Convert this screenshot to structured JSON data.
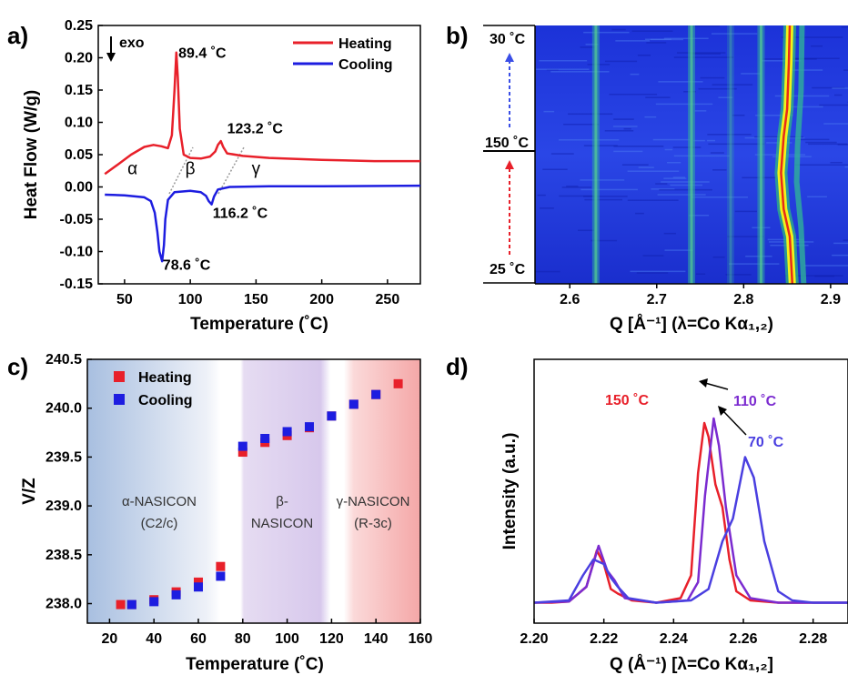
{
  "colors": {
    "heating": "#e8202a",
    "cooling": "#1d1de0",
    "c110": "#7b2bd0",
    "c70": "#4a3fe0"
  },
  "panel_labels": {
    "a": "a)",
    "b": "b)",
    "c": "c)",
    "d": "d)"
  },
  "chart_data": [
    {
      "id": "a",
      "type": "line",
      "xlabel": "Temperature (˚C)",
      "ylabel": "Heat Flow (W/g)",
      "xlim": [
        30,
        275
      ],
      "ylim": [
        -0.15,
        0.25
      ],
      "xticks": [
        "50",
        "100",
        "150",
        "200",
        "250"
      ],
      "yticks": [
        "-0.15",
        "-0.10",
        "-0.05",
        "0.00",
        "0.05",
        "0.10",
        "0.15",
        "0.20",
        "0.25"
      ],
      "exo_label": "exo",
      "legend_position": "top-right",
      "series": [
        {
          "name": "Heating",
          "points": [
            [
              35,
              0.02
            ],
            [
              45,
              0.035
            ],
            [
              55,
              0.05
            ],
            [
              65,
              0.062
            ],
            [
              72,
              0.065
            ],
            [
              78,
              0.063
            ],
            [
              83,
              0.06
            ],
            [
              86,
              0.08
            ],
            [
              88,
              0.15
            ],
            [
              89.4,
              0.208
            ],
            [
              90.5,
              0.17
            ],
            [
              92,
              0.09
            ],
            [
              95,
              0.05
            ],
            [
              100,
              0.045
            ],
            [
              108,
              0.044
            ],
            [
              115,
              0.047
            ],
            [
              119,
              0.055
            ],
            [
              121,
              0.065
            ],
            [
              123.2,
              0.071
            ],
            [
              125,
              0.062
            ],
            [
              128,
              0.052
            ],
            [
              140,
              0.048
            ],
            [
              160,
              0.045
            ],
            [
              200,
              0.042
            ],
            [
              240,
              0.04
            ],
            [
              275,
              0.04
            ]
          ]
        },
        {
          "name": "Cooling",
          "points": [
            [
              35,
              -0.012
            ],
            [
              50,
              -0.013
            ],
            [
              65,
              -0.016
            ],
            [
              70,
              -0.022
            ],
            [
              73,
              -0.04
            ],
            [
              75,
              -0.07
            ],
            [
              76.5,
              -0.1
            ],
            [
              78.6,
              -0.115
            ],
            [
              80,
              -0.09
            ],
            [
              81,
              -0.05
            ],
            [
              83,
              -0.02
            ],
            [
              88,
              -0.008
            ],
            [
              100,
              -0.006
            ],
            [
              108,
              -0.008
            ],
            [
              112,
              -0.014
            ],
            [
              114,
              -0.022
            ],
            [
              116.2,
              -0.027
            ],
            [
              118,
              -0.015
            ],
            [
              121,
              -0.004
            ],
            [
              130,
              0.0
            ],
            [
              160,
              0.001
            ],
            [
              200,
              0.001
            ],
            [
              275,
              0.002
            ]
          ]
        }
      ],
      "annotations": [
        {
          "text": "89.4 ˚C",
          "x": 91,
          "y": 0.2
        },
        {
          "text": "123.2 ˚C",
          "x": 128,
          "y": 0.083
        },
        {
          "text": "116.2 ˚C",
          "x": 117,
          "y": -0.048
        },
        {
          "text": "78.6 ˚C",
          "x": 79,
          "y": -0.128
        }
      ],
      "phase_labels": [
        {
          "text": "α",
          "x": 56,
          "y": 0.02
        },
        {
          "text": "β",
          "x": 100,
          "y": 0.02
        },
        {
          "text": "γ",
          "x": 150,
          "y": 0.02
        }
      ]
    },
    {
      "id": "b",
      "type": "heatmap",
      "xlabel": "Q [Å⁻¹] (λ=Co Kα₁,₂)",
      "xlim": [
        2.56,
        2.92
      ],
      "xticks": [
        "2.6",
        "2.7",
        "2.8",
        "2.9"
      ],
      "temp_labels": [
        "30 ˚C",
        "150 ˚C",
        "25 ˚C"
      ]
    },
    {
      "id": "c",
      "type": "scatter",
      "xlabel": "Temperature (˚C)",
      "ylabel": "V/Z",
      "xlim": [
        10,
        160
      ],
      "ylim": [
        237.8,
        240.5
      ],
      "xticks": [
        "20",
        "40",
        "60",
        "80",
        "100",
        "120",
        "140",
        "160"
      ],
      "yticks": [
        "238.0",
        "238.5",
        "239.0",
        "239.5",
        "240.0",
        "240.5"
      ],
      "legend_position": "top-left",
      "series": [
        {
          "name": "Heating",
          "x": [
            25,
            30,
            40,
            50,
            60,
            70,
            80,
            90,
            100,
            110,
            120,
            130,
            140,
            150
          ],
          "values": [
            237.99,
            237.99,
            238.04,
            238.12,
            238.22,
            238.38,
            239.55,
            239.65,
            239.72,
            239.8,
            239.92,
            240.04,
            240.14,
            240.25
          ]
        },
        {
          "name": "Cooling",
          "x": [
            30,
            40,
            50,
            60,
            70,
            80,
            90,
            100,
            110,
            120,
            130,
            140
          ],
          "values": [
            237.99,
            238.02,
            238.09,
            238.17,
            238.28,
            239.61,
            239.69,
            239.76,
            239.81,
            239.92,
            240.04,
            240.14
          ]
        }
      ],
      "regions": [
        {
          "line1": "α-NASICON",
          "line2": "(C2/c)"
        },
        {
          "line1": "β-",
          "line2": "NASICON"
        },
        {
          "line1": "γ-NASICON",
          "line2": "(R-3c)"
        }
      ]
    },
    {
      "id": "d",
      "type": "line",
      "xlabel": "Q (Å⁻¹) [λ=Co Kα₁,₂]",
      "ylabel": "Intensity (a.u.)",
      "xlim": [
        2.2,
        2.29
      ],
      "xticks": [
        "2.20",
        "2.22",
        "2.24",
        "2.26",
        "2.28"
      ],
      "series": [
        {
          "name": "150 ˚C",
          "points": [
            [
              2.2,
              0.03
            ],
            [
              2.205,
              0.03
            ],
            [
              2.21,
              0.035
            ],
            [
              2.215,
              0.1
            ],
            [
              2.218,
              0.26
            ],
            [
              2.22,
              0.2
            ],
            [
              2.222,
              0.09
            ],
            [
              2.224,
              0.07
            ],
            [
              2.228,
              0.04
            ],
            [
              2.235,
              0.03
            ],
            [
              2.242,
              0.05
            ],
            [
              2.245,
              0.15
            ],
            [
              2.247,
              0.6
            ],
            [
              2.2488,
              0.82
            ],
            [
              2.25,
              0.76
            ],
            [
              2.252,
              0.55
            ],
            [
              2.254,
              0.45
            ],
            [
              2.256,
              0.22
            ],
            [
              2.258,
              0.08
            ],
            [
              2.262,
              0.04
            ],
            [
              2.27,
              0.03
            ],
            [
              2.29,
              0.03
            ]
          ]
        },
        {
          "name": "110 ˚C",
          "points": [
            [
              2.2,
              0.03
            ],
            [
              2.21,
              0.035
            ],
            [
              2.215,
              0.1
            ],
            [
              2.2185,
              0.28
            ],
            [
              2.221,
              0.17
            ],
            [
              2.223,
              0.13
            ],
            [
              2.226,
              0.05
            ],
            [
              2.235,
              0.03
            ],
            [
              2.244,
              0.04
            ],
            [
              2.247,
              0.12
            ],
            [
              2.249,
              0.5
            ],
            [
              2.2515,
              0.84
            ],
            [
              2.253,
              0.72
            ],
            [
              2.255,
              0.45
            ],
            [
              2.258,
              0.15
            ],
            [
              2.262,
              0.05
            ],
            [
              2.27,
              0.03
            ],
            [
              2.29,
              0.03
            ]
          ]
        },
        {
          "name": "70 ˚C",
          "points": [
            [
              2.2,
              0.03
            ],
            [
              2.21,
              0.04
            ],
            [
              2.214,
              0.15
            ],
            [
              2.217,
              0.22
            ],
            [
              2.22,
              0.2
            ],
            [
              2.222,
              0.14
            ],
            [
              2.224,
              0.1
            ],
            [
              2.227,
              0.05
            ],
            [
              2.235,
              0.03
            ],
            [
              2.245,
              0.04
            ],
            [
              2.25,
              0.09
            ],
            [
              2.254,
              0.3
            ],
            [
              2.257,
              0.4
            ],
            [
              2.2605,
              0.67
            ],
            [
              2.263,
              0.58
            ],
            [
              2.266,
              0.3
            ],
            [
              2.27,
              0.08
            ],
            [
              2.274,
              0.04
            ],
            [
              2.28,
              0.03
            ],
            [
              2.29,
              0.03
            ]
          ]
        }
      ],
      "annotations": [
        {
          "text": "150 ˚C"
        },
        {
          "text": "110 ˚C"
        },
        {
          "text": "70 ˚C"
        }
      ]
    }
  ]
}
